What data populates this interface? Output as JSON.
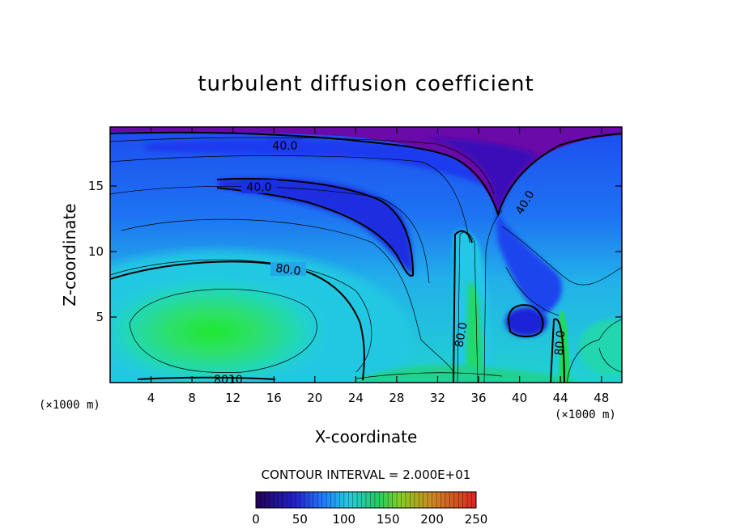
{
  "chart_data": {
    "type": "heatmap",
    "title": "turbulent diffusion coefficient",
    "xlabel": "X-coordinate",
    "ylabel": "Z-coordinate",
    "x_unit": "(×1000 m)",
    "x_unit_right": "(×1000 m)",
    "xlim": [
      0,
      50
    ],
    "ylim": [
      0,
      19.5
    ],
    "x_ticks": [
      4,
      8,
      12,
      16,
      20,
      24,
      28,
      32,
      36,
      40,
      44,
      48
    ],
    "y_ticks": [
      5,
      10,
      15
    ],
    "contour_interval_text": "CONTOUR INTERVAL = 2.000E+01",
    "contour_labels": [
      "40.0",
      "40.0",
      "80.0",
      "40.0",
      "80.0",
      "80.0",
      "8010"
    ],
    "colorbar": {
      "min": 0,
      "max": 250,
      "ticks": [
        0,
        50,
        100,
        150,
        200,
        250
      ]
    },
    "colors": {
      "low": "#2a0066",
      "mid_blue": "#1f5fff",
      "cyan": "#22d9ee",
      "green": "#22e03a",
      "top_purple": "#6a0aa8",
      "high": "#ee3322"
    }
  }
}
